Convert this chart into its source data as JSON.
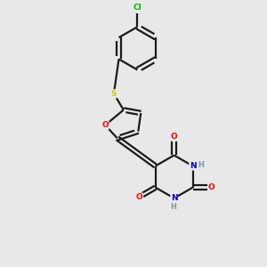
{
  "background_color": "#e8e8e8",
  "bond_color": "#1a1a1a",
  "atom_colors": {
    "O": "#ff0000",
    "N": "#0000cd",
    "S": "#cccc00",
    "Cl": "#00bb00",
    "C": "#1a1a1a",
    "H": "#7a9a9a"
  },
  "lw": 1.6
}
